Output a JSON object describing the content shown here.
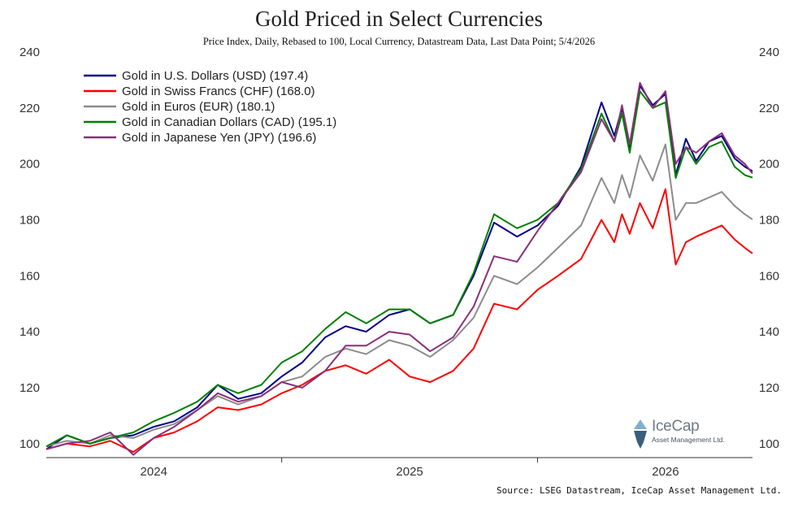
{
  "chart_data": {
    "type": "line",
    "title": "Gold Priced in Select Currencies",
    "subtitle": "Price Index, Daily, Rebased to 100, Local Currency, Datastream Data, Last Data Point; 5/4/2026",
    "ylim": [
      95,
      240
    ],
    "y_ticks": [
      100,
      120,
      140,
      160,
      180,
      200,
      220,
      240
    ],
    "x_range": [
      2023.58,
      2026.34
    ],
    "x_tick_labels": [
      {
        "label": "2024",
        "x": 2024.0
      },
      {
        "label": "2025",
        "x": 2025.0
      },
      {
        "label": "2026",
        "x": 2026.0
      }
    ],
    "x_year_boundaries": [
      2024.5,
      2025.5
    ],
    "legend_position": "top-left",
    "grid": false,
    "series": [
      {
        "name": "Gold in U.S. Dollars (USD) (197.4)",
        "color": "#00008b",
        "x": [
          2023.58,
          2023.66,
          2023.75,
          2023.83,
          2023.92,
          2024.0,
          2024.08,
          2024.17,
          2024.25,
          2024.33,
          2024.42,
          2024.5,
          2024.58,
          2024.67,
          2024.75,
          2024.83,
          2024.92,
          2025.0,
          2025.08,
          2025.17,
          2025.25,
          2025.33,
          2025.42,
          2025.5,
          2025.58,
          2025.67,
          2025.75,
          2025.8,
          2025.83,
          2025.86,
          2025.9,
          2025.95,
          2026.0,
          2026.04,
          2026.08,
          2026.12,
          2026.17,
          2026.22,
          2026.27,
          2026.31,
          2026.34
        ],
        "y": [
          98,
          103,
          100,
          102,
          103,
          106,
          108,
          113,
          121,
          116,
          118,
          124,
          129,
          138,
          142,
          140,
          146,
          148,
          143,
          146,
          160,
          179,
          174,
          178,
          185,
          199,
          222,
          210,
          220,
          205,
          228,
          221,
          225,
          196,
          209,
          201,
          208,
          210,
          202,
          199,
          197.4
        ]
      },
      {
        "name": "Gold in Swiss Francs (CHF) (168.0)",
        "color": "#ff0000",
        "x": [
          2023.58,
          2023.66,
          2023.75,
          2023.83,
          2023.92,
          2024.0,
          2024.08,
          2024.17,
          2024.25,
          2024.33,
          2024.42,
          2024.5,
          2024.58,
          2024.67,
          2024.75,
          2024.83,
          2024.92,
          2025.0,
          2025.08,
          2025.17,
          2025.25,
          2025.33,
          2025.42,
          2025.5,
          2025.58,
          2025.67,
          2025.75,
          2025.8,
          2025.83,
          2025.86,
          2025.9,
          2025.95,
          2026.0,
          2026.04,
          2026.08,
          2026.12,
          2026.17,
          2026.22,
          2026.27,
          2026.31,
          2026.34
        ],
        "y": [
          98,
          100,
          99,
          101,
          97,
          102,
          104,
          108,
          113,
          112,
          114,
          118,
          121,
          126,
          128,
          125,
          130,
          124,
          122,
          126,
          134,
          150,
          148,
          155,
          160,
          166,
          180,
          172,
          182,
          175,
          186,
          177,
          191,
          164,
          172,
          174,
          176,
          178,
          173,
          170,
          168
        ]
      },
      {
        "name": "Gold in Euros (EUR) (180.1)",
        "color": "#8c8c8c",
        "x": [
          2023.58,
          2023.66,
          2023.75,
          2023.83,
          2023.92,
          2024.0,
          2024.08,
          2024.17,
          2024.25,
          2024.33,
          2024.42,
          2024.5,
          2024.58,
          2024.67,
          2024.75,
          2024.83,
          2024.92,
          2025.0,
          2025.08,
          2025.17,
          2025.25,
          2025.33,
          2025.42,
          2025.5,
          2025.58,
          2025.67,
          2025.75,
          2025.8,
          2025.83,
          2025.86,
          2025.9,
          2025.95,
          2026.0,
          2026.04,
          2026.08,
          2026.12,
          2026.17,
          2026.22,
          2026.27,
          2026.31,
          2026.34
        ],
        "y": [
          99,
          101,
          100,
          103,
          102,
          105,
          107,
          112,
          117,
          114,
          117,
          122,
          124,
          131,
          134,
          132,
          137,
          135,
          131,
          137,
          145,
          160,
          157,
          163,
          170,
          178,
          195,
          186,
          196,
          188,
          203,
          194,
          207,
          180,
          186,
          186,
          188,
          190,
          185,
          182,
          180.1
        ]
      },
      {
        "name": "Gold in Canadian Dollars (CAD) (195.1)",
        "color": "#008000",
        "x": [
          2023.58,
          2023.66,
          2023.75,
          2023.83,
          2023.92,
          2024.0,
          2024.08,
          2024.17,
          2024.25,
          2024.33,
          2024.42,
          2024.5,
          2024.58,
          2024.67,
          2024.75,
          2024.83,
          2024.92,
          2025.0,
          2025.08,
          2025.17,
          2025.25,
          2025.33,
          2025.42,
          2025.5,
          2025.58,
          2025.67,
          2025.75,
          2025.8,
          2025.83,
          2025.86,
          2025.9,
          2025.95,
          2026.0,
          2026.04,
          2026.08,
          2026.12,
          2026.17,
          2026.22,
          2026.27,
          2026.31,
          2026.34
        ],
        "y": [
          99,
          103,
          100,
          102,
          104,
          108,
          111,
          115,
          121,
          118,
          121,
          129,
          133,
          141,
          147,
          143,
          148,
          148,
          143,
          146,
          161,
          182,
          177,
          180,
          186,
          198,
          218,
          208,
          218,
          204,
          226,
          220,
          222,
          195,
          206,
          200,
          206,
          208,
          199,
          196,
          195.1
        ]
      },
      {
        "name": "Gold in Japanese Yen (JPY) (196.6)",
        "color": "#8b2f7a",
        "x": [
          2023.58,
          2023.66,
          2023.75,
          2023.83,
          2023.92,
          2024.0,
          2024.08,
          2024.17,
          2024.25,
          2024.33,
          2024.42,
          2024.5,
          2024.58,
          2024.67,
          2024.75,
          2024.83,
          2024.92,
          2025.0,
          2025.08,
          2025.17,
          2025.25,
          2025.33,
          2025.42,
          2025.5,
          2025.58,
          2025.67,
          2025.75,
          2025.8,
          2025.83,
          2025.86,
          2025.9,
          2025.95,
          2026.0,
          2026.04,
          2026.08,
          2026.12,
          2026.17,
          2026.22,
          2026.27,
          2026.31,
          2026.34
        ],
        "y": [
          98,
          100,
          101,
          104,
          96,
          102,
          106,
          112,
          118,
          115,
          117,
          122,
          120,
          126,
          135,
          135,
          140,
          139,
          133,
          138,
          149,
          167,
          165,
          176,
          186,
          197,
          216,
          208,
          221,
          207,
          229,
          220,
          226,
          200,
          206,
          204,
          208,
          211,
          203,
          200,
          196.6
        ]
      }
    ],
    "source": "Source: LSEG Datastream, IceCap Asset Management Ltd."
  },
  "logo": {
    "name": "IceCap",
    "sub": "Asset Management Ltd."
  }
}
